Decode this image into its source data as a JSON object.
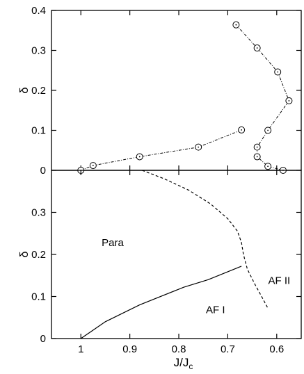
{
  "chart_data": [
    {
      "type": "scatter",
      "title": "",
      "xlabel": "",
      "ylabel": "δ",
      "xlim": [
        1.06,
        0.55
      ],
      "ylim": [
        0,
        0.4
      ],
      "x_reversed": true,
      "x_ticks": [
        1,
        0.9,
        0.8,
        0.7,
        0.6
      ],
      "y_ticks": [
        0,
        0.1,
        0.2,
        0.3,
        0.4
      ],
      "y_tick_labels": [
        "0",
        "0.1",
        "0.2",
        "0.3",
        "0.4"
      ],
      "marker": "circle-dot",
      "line_style": "dash-dot",
      "series": [
        {
          "x": [
            1.0,
            0.975,
            0.88,
            0.76,
            0.672
          ],
          "y": [
            0.0,
            0.012,
            0.034,
            0.058,
            0.101
          ]
        },
        {
          "x": [
            0.683,
            0.64,
            0.598,
            0.575,
            0.618,
            0.64,
            0.64,
            0.618,
            0.587
          ],
          "y": [
            0.364,
            0.306,
            0.246,
            0.174,
            0.1,
            0.058,
            0.034,
            0.01,
            0.0
          ]
        }
      ]
    },
    {
      "type": "line",
      "title": "",
      "xlabel": "J/J_c",
      "xlabel_main": "J/J",
      "xlabel_sub": "c",
      "ylabel": "δ",
      "xlim": [
        1.06,
        0.55
      ],
      "ylim": [
        0,
        0.4
      ],
      "x_reversed": true,
      "x_ticks": [
        1,
        0.9,
        0.8,
        0.7,
        0.6
      ],
      "x_tick_labels": [
        "1",
        "0.9",
        "0.8",
        "0.7",
        "0.6"
      ],
      "y_ticks": [
        0,
        0.1,
        0.2,
        0.3
      ],
      "y_tick_labels": [
        "0",
        "0.1",
        "0.2",
        "0.3"
      ],
      "series": [
        {
          "style": "solid",
          "x": [
            1.0,
            0.95,
            0.88,
            0.79,
            0.74,
            0.672
          ],
          "y": [
            0.0,
            0.04,
            0.08,
            0.122,
            0.14,
            0.172
          ]
        },
        {
          "style": "dashed",
          "x": [
            0.875,
            0.83,
            0.78,
            0.735,
            0.7,
            0.68,
            0.672,
            0.668,
            0.66,
            0.645,
            0.63,
            0.618
          ],
          "y": [
            0.4,
            0.38,
            0.353,
            0.32,
            0.285,
            0.255,
            0.228,
            0.2,
            0.165,
            0.13,
            0.098,
            0.072
          ]
        }
      ],
      "annotations": [
        {
          "text": "Para",
          "x": 0.935,
          "y": 0.22
        },
        {
          "text": "AF II",
          "x": 0.595,
          "y": 0.13
        },
        {
          "text": "AF I",
          "x": 0.725,
          "y": 0.06
        }
      ]
    }
  ]
}
